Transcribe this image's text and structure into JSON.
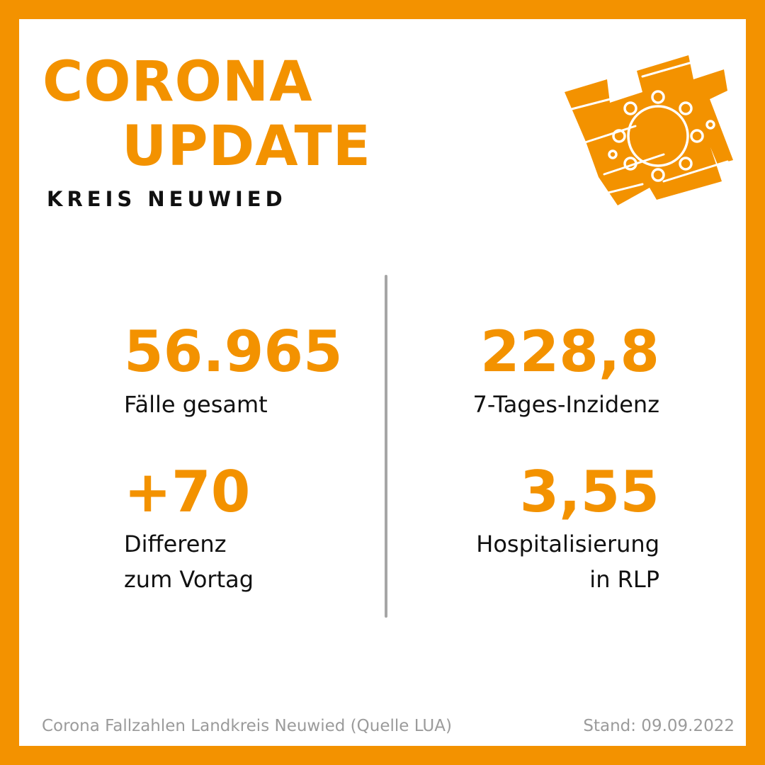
{
  "header": {
    "title_line1": "CORONA",
    "title_line2": "UPDATE",
    "subtitle": "KREIS NEUWIED"
  },
  "logo": {
    "icon": "virus-on-crown-logo-icon",
    "color": "#F39200"
  },
  "stats": {
    "total_cases": {
      "value": "56.965",
      "label": "Fälle gesamt"
    },
    "incidence": {
      "value": "228,8",
      "label": "7-Tages-Inzidenz"
    },
    "difference": {
      "value": "+70",
      "label": "Differenz\nzum Vortag"
    },
    "hospitalization": {
      "value": "3,55",
      "label": "Hospitalisierung\nin RLP"
    }
  },
  "footer": {
    "source": "Corona Fallzahlen Landkreis Neuwied (Quelle LUA)",
    "date": "Stand: 09.09.2022"
  },
  "colors": {
    "accent": "#F39200",
    "text": "#111111",
    "muted": "#9B9B9B",
    "divider": "#A6A6A6"
  }
}
